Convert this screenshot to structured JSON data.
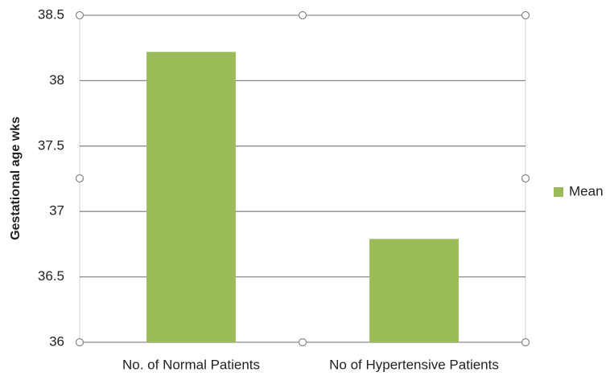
{
  "chart_data": {
    "type": "bar",
    "y_axis_label": "Gestational age wks",
    "categories": [
      "No. of Normal Patients",
      "No of Hypertensive Patients"
    ],
    "series": [
      {
        "name": "Mean",
        "color": "#9bbb59",
        "values": [
          38.22,
          36.79
        ]
      }
    ],
    "ylim": [
      36,
      38.5
    ],
    "yticks": [
      36,
      36.5,
      37,
      37.5,
      38,
      38.5
    ],
    "grid": true,
    "legend": "right"
  }
}
